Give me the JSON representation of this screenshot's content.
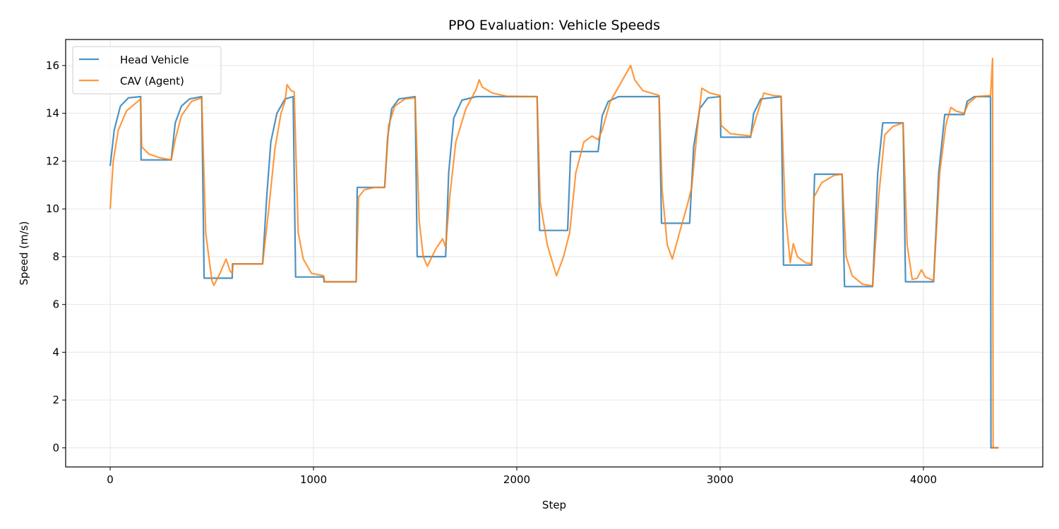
{
  "chart_data": {
    "type": "line",
    "title": "PPO Evaluation: Vehicle Speeds",
    "xlabel": "Step",
    "ylabel": "Speed (m/s)",
    "xlim": [
      -219,
      4587
    ],
    "ylim": [
      -0.8,
      17.09
    ],
    "xticks": [
      0,
      1000,
      2000,
      3000,
      4000
    ],
    "yticks": [
      0,
      2,
      4,
      6,
      8,
      10,
      12,
      14,
      16
    ],
    "grid": true,
    "legend_position": "top-left",
    "series": [
      {
        "name": "Head Vehicle",
        "color": "#1f77b4",
        "points": [
          [
            0,
            11.8
          ],
          [
            20,
            13.3
          ],
          [
            50,
            14.3
          ],
          [
            90,
            14.65
          ],
          [
            150,
            14.7
          ],
          [
            152,
            12.05
          ],
          [
            300,
            12.05
          ],
          [
            320,
            13.6
          ],
          [
            350,
            14.3
          ],
          [
            390,
            14.6
          ],
          [
            450,
            14.7
          ],
          [
            462,
            7.1
          ],
          [
            600,
            7.1
          ],
          [
            602,
            7.7
          ],
          [
            750,
            7.7
          ],
          [
            770,
            10.5
          ],
          [
            790,
            12.8
          ],
          [
            820,
            14.0
          ],
          [
            860,
            14.6
          ],
          [
            900,
            14.7
          ],
          [
            912,
            7.15
          ],
          [
            1050,
            7.15
          ],
          [
            1052,
            6.95
          ],
          [
            1210,
            6.95
          ],
          [
            1215,
            10.9
          ],
          [
            1350,
            10.9
          ],
          [
            1365,
            13.0
          ],
          [
            1385,
            14.2
          ],
          [
            1420,
            14.6
          ],
          [
            1500,
            14.7
          ],
          [
            1510,
            8.0
          ],
          [
            1650,
            8.0
          ],
          [
            1665,
            11.5
          ],
          [
            1690,
            13.8
          ],
          [
            1730,
            14.55
          ],
          [
            1800,
            14.7
          ],
          [
            2100,
            14.7
          ],
          [
            2112,
            9.1
          ],
          [
            2250,
            9.1
          ],
          [
            2265,
            12.4
          ],
          [
            2400,
            12.4
          ],
          [
            2420,
            13.9
          ],
          [
            2450,
            14.5
          ],
          [
            2500,
            14.7
          ],
          [
            2700,
            14.7
          ],
          [
            2712,
            9.4
          ],
          [
            2850,
            9.4
          ],
          [
            2870,
            12.6
          ],
          [
            2900,
            14.2
          ],
          [
            2940,
            14.65
          ],
          [
            3000,
            14.7
          ],
          [
            3003,
            13.0
          ],
          [
            3150,
            13.0
          ],
          [
            3165,
            14.0
          ],
          [
            3200,
            14.6
          ],
          [
            3300,
            14.7
          ],
          [
            3312,
            7.65
          ],
          [
            3450,
            7.65
          ],
          [
            3465,
            11.45
          ],
          [
            3600,
            11.45
          ],
          [
            3612,
            6.75
          ],
          [
            3750,
            6.75
          ],
          [
            3775,
            11.5
          ],
          [
            3800,
            13.6
          ],
          [
            3900,
            13.6
          ],
          [
            3912,
            6.95
          ],
          [
            4050,
            6.95
          ],
          [
            4075,
            11.5
          ],
          [
            4105,
            13.95
          ],
          [
            4200,
            13.95
          ],
          [
            4215,
            14.5
          ],
          [
            4250,
            14.7
          ],
          [
            4330,
            14.7
          ],
          [
            4332,
            0
          ],
          [
            4370,
            0
          ]
        ]
      },
      {
        "name": "CAV (Agent)",
        "color": "#ff7f0e",
        "points": [
          [
            0,
            10.0
          ],
          [
            15,
            12.0
          ],
          [
            40,
            13.3
          ],
          [
            80,
            14.1
          ],
          [
            150,
            14.6
          ],
          [
            155,
            12.6
          ],
          [
            190,
            12.3
          ],
          [
            240,
            12.15
          ],
          [
            300,
            12.05
          ],
          [
            320,
            12.9
          ],
          [
            350,
            13.9
          ],
          [
            400,
            14.5
          ],
          [
            450,
            14.65
          ],
          [
            470,
            9.0
          ],
          [
            500,
            7.0
          ],
          [
            510,
            6.8
          ],
          [
            540,
            7.3
          ],
          [
            570,
            7.9
          ],
          [
            590,
            7.4
          ],
          [
            600,
            7.3
          ],
          [
            605,
            7.7
          ],
          [
            750,
            7.7
          ],
          [
            780,
            10.0
          ],
          [
            810,
            12.5
          ],
          [
            840,
            14.0
          ],
          [
            860,
            14.5
          ],
          [
            870,
            15.2
          ],
          [
            890,
            14.95
          ],
          [
            905,
            14.9
          ],
          [
            925,
            9.0
          ],
          [
            950,
            7.9
          ],
          [
            990,
            7.3
          ],
          [
            1050,
            7.2
          ],
          [
            1055,
            6.95
          ],
          [
            1210,
            6.95
          ],
          [
            1222,
            10.5
          ],
          [
            1250,
            10.8
          ],
          [
            1300,
            10.9
          ],
          [
            1350,
            10.9
          ],
          [
            1370,
            13.5
          ],
          [
            1400,
            14.3
          ],
          [
            1450,
            14.6
          ],
          [
            1500,
            14.65
          ],
          [
            1520,
            9.5
          ],
          [
            1540,
            8.0
          ],
          [
            1560,
            7.6
          ],
          [
            1600,
            8.3
          ],
          [
            1635,
            8.75
          ],
          [
            1650,
            8.4
          ],
          [
            1670,
            10.5
          ],
          [
            1700,
            12.8
          ],
          [
            1750,
            14.2
          ],
          [
            1800,
            15.0
          ],
          [
            1815,
            15.4
          ],
          [
            1830,
            15.1
          ],
          [
            1880,
            14.85
          ],
          [
            1950,
            14.72
          ],
          [
            2100,
            14.7
          ],
          [
            2115,
            10.3
          ],
          [
            2150,
            8.5
          ],
          [
            2195,
            7.2
          ],
          [
            2230,
            8.0
          ],
          [
            2260,
            9.0
          ],
          [
            2290,
            11.5
          ],
          [
            2330,
            12.8
          ],
          [
            2370,
            13.05
          ],
          [
            2400,
            12.9
          ],
          [
            2420,
            13.3
          ],
          [
            2460,
            14.5
          ],
          [
            2520,
            15.4
          ],
          [
            2560,
            16.0
          ],
          [
            2580,
            15.4
          ],
          [
            2620,
            14.95
          ],
          [
            2700,
            14.75
          ],
          [
            2715,
            10.8
          ],
          [
            2740,
            8.5
          ],
          [
            2765,
            7.9
          ],
          [
            2800,
            9.0
          ],
          [
            2840,
            10.2
          ],
          [
            2860,
            10.9
          ],
          [
            2890,
            13.5
          ],
          [
            2910,
            15.05
          ],
          [
            2950,
            14.85
          ],
          [
            3000,
            14.75
          ],
          [
            3005,
            13.5
          ],
          [
            3050,
            13.15
          ],
          [
            3150,
            13.05
          ],
          [
            3180,
            13.9
          ],
          [
            3215,
            14.85
          ],
          [
            3260,
            14.75
          ],
          [
            3300,
            14.72
          ],
          [
            3320,
            10.0
          ],
          [
            3345,
            7.75
          ],
          [
            3360,
            8.55
          ],
          [
            3380,
            8.0
          ],
          [
            3420,
            7.75
          ],
          [
            3450,
            7.7
          ],
          [
            3462,
            10.5
          ],
          [
            3500,
            11.1
          ],
          [
            3560,
            11.4
          ],
          [
            3600,
            11.45
          ],
          [
            3620,
            8.0
          ],
          [
            3650,
            7.2
          ],
          [
            3700,
            6.85
          ],
          [
            3750,
            6.78
          ],
          [
            3780,
            10.5
          ],
          [
            3810,
            13.1
          ],
          [
            3850,
            13.45
          ],
          [
            3900,
            13.6
          ],
          [
            3920,
            8.5
          ],
          [
            3945,
            7.05
          ],
          [
            3970,
            7.1
          ],
          [
            3990,
            7.45
          ],
          [
            4010,
            7.15
          ],
          [
            4050,
            7.0
          ],
          [
            4080,
            11.5
          ],
          [
            4110,
            13.5
          ],
          [
            4135,
            14.25
          ],
          [
            4160,
            14.1
          ],
          [
            4200,
            14.0
          ],
          [
            4220,
            14.4
          ],
          [
            4260,
            14.7
          ],
          [
            4330,
            14.75
          ],
          [
            4335,
            15.5
          ],
          [
            4340,
            16.3
          ],
          [
            4343,
            0
          ],
          [
            4370,
            0
          ]
        ]
      }
    ]
  }
}
